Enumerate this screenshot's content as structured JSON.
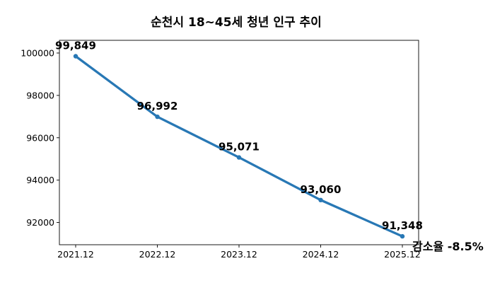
{
  "chart_data": {
    "type": "line",
    "title": "순천시 18~45세 청년 인구 추이",
    "xlabel": "",
    "ylabel": "",
    "categories": [
      "2021.12",
      "2022.12",
      "2023.12",
      "2024.12",
      "2025.12"
    ],
    "series": [
      {
        "values": [
          99849,
          96992,
          95071,
          93060,
          91348
        ],
        "labels": [
          "99,849",
          "96,992",
          "95,071",
          "93,060",
          "91,348"
        ],
        "color": "#2878b5"
      }
    ],
    "yticks": [
      92000,
      94000,
      96000,
      98000,
      100000
    ],
    "ytick_labels": [
      "92000",
      "94000",
      "96000",
      "98000",
      "100000"
    ],
    "ylim": [
      90950,
      100600
    ],
    "grid": false,
    "legend": "none",
    "annotation": "감소율 -8.5%"
  }
}
